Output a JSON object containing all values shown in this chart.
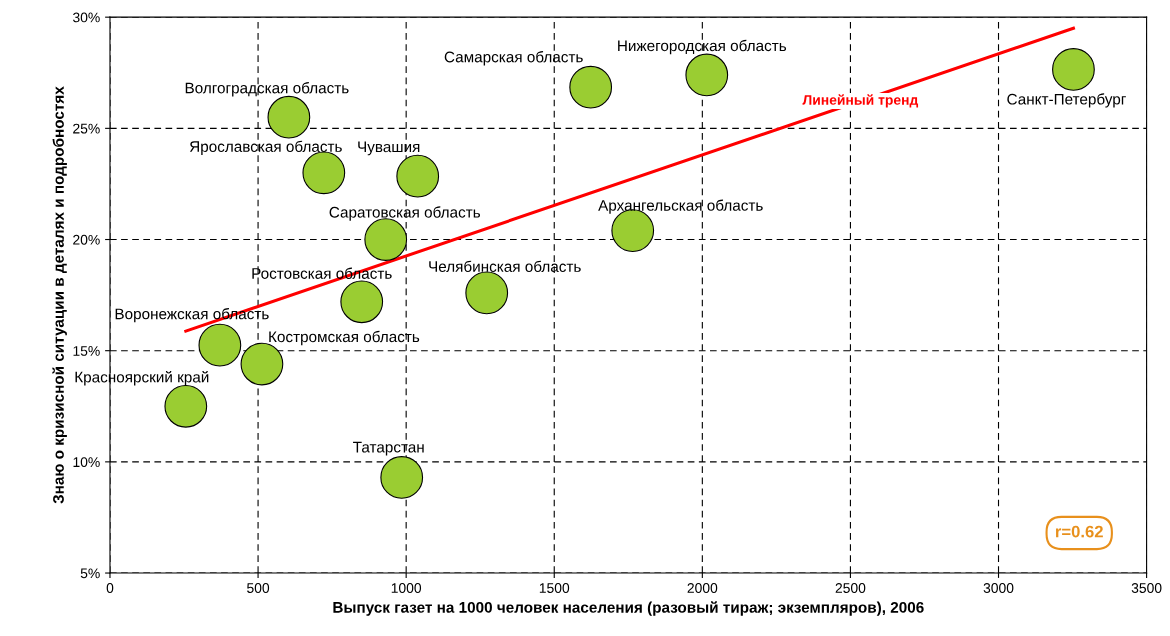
{
  "chart_data": {
    "type": "scatter",
    "xlabel": "Выпуск газет на 1000 человек населения (разовый тираж; экземпляров), 2006",
    "ylabel": "Знаю о кризисной ситуации в деталях и подробностях",
    "xlim": [
      0,
      3500
    ],
    "xticks": [
      0,
      500,
      1000,
      1500,
      2000,
      2500,
      3000,
      3500
    ],
    "ylim": [
      5,
      30
    ],
    "yticks": [
      {
        "value": 5,
        "label": "5%"
      },
      {
        "value": 10,
        "label": "10%"
      },
      {
        "value": 15,
        "label": "15%"
      },
      {
        "value": 20,
        "label": "20%"
      },
      {
        "value": 25,
        "label": "25%"
      },
      {
        "value": 30,
        "label": "30%"
      }
    ],
    "grid": true,
    "series": [
      {
        "color": "#9acd32",
        "marker": "circle",
        "x": [
          604,
          722,
          1039,
          931,
          850,
          371,
          513,
          256,
          985,
          1272,
          1623,
          2015,
          1765,
          3253
        ],
        "values": [
          25.5,
          23.0,
          22.85,
          20.0,
          17.2,
          15.25,
          14.4,
          12.5,
          9.3,
          17.6,
          26.85,
          27.4,
          20.4,
          27.65
        ]
      },
      {
        "type": "line",
        "name": "Линейный тренд",
        "color": "#ff0000",
        "x": [
          256,
          3253
        ],
        "values": [
          15.88,
          29.5
        ]
      }
    ],
    "annotations": [
      {
        "text": "Волгоградская область",
        "x": 604,
        "y": 25.5
      },
      {
        "text": "Ярославская область",
        "x": 722,
        "y": 23.0
      },
      {
        "text": "Чувашия",
        "x": 1039,
        "y": 22.85
      },
      {
        "text": "Саратовская область",
        "x": 931,
        "y": 20.0
      },
      {
        "text": "Ростовская область",
        "x": 850,
        "y": 17.2
      },
      {
        "text": "Воронежская область",
        "x": 371,
        "y": 15.25
      },
      {
        "text": "Костромская область",
        "x": 513,
        "y": 14.4
      },
      {
        "text": "Красноярский край",
        "x": 256,
        "y": 12.5
      },
      {
        "text": "Татарстан",
        "x": 985,
        "y": 9.3
      },
      {
        "text": "Челябинская область",
        "x": 1272,
        "y": 17.6
      },
      {
        "text": "Самарская область",
        "x": 1623,
        "y": 26.85
      },
      {
        "text": "Нижегородская область",
        "x": 2015,
        "y": 27.4
      },
      {
        "text": "Архангельская область",
        "x": 1765,
        "y": 20.4
      },
      {
        "text": "Санкт-Петербург",
        "x": 3253,
        "y": 27.65
      },
      "r=0.62"
    ]
  }
}
